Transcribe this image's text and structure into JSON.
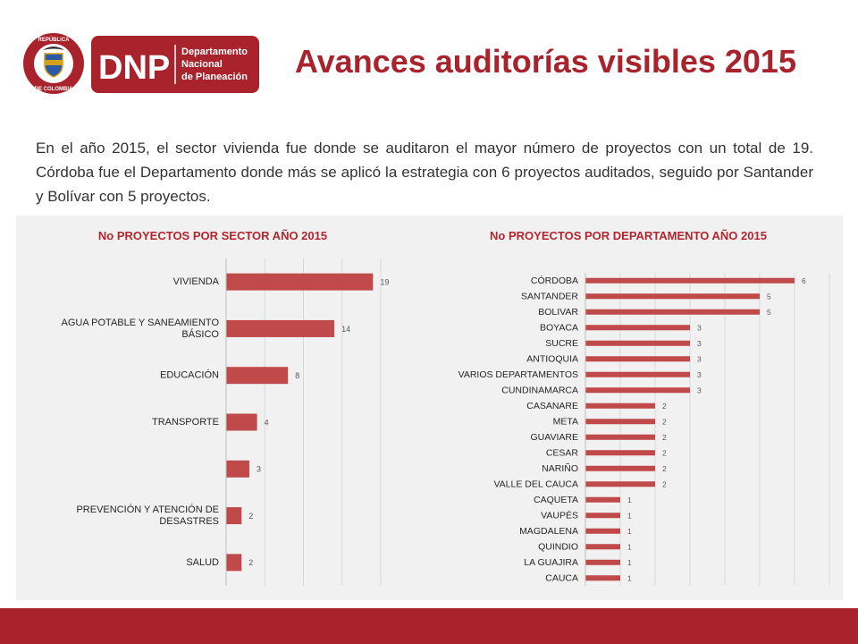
{
  "header": {
    "logo": {
      "seal_top_text": "REPÚBLICA",
      "seal_bottom_text": "DE COLOMBIA",
      "acronym": "DNP",
      "name_lines": [
        "Departamento",
        "Nacional",
        "de Planeación"
      ]
    },
    "title": "Avances auditorías visibles 2015"
  },
  "intro": "En el año 2015, el sector vivienda fue donde se auditaron el mayor número de proyectos con un total de 19. Córdoba fue el Departamento donde más se aplicó la estrategia con 6 proyectos auditados, seguido por Santander y Bolívar con 5 proyectos.",
  "colors": {
    "brand": "#a8232b",
    "bar": "#c0494a",
    "panel": "#f1f1f1",
    "gridline": "#d9d9d9"
  },
  "chart_data": [
    {
      "type": "bar",
      "orientation": "horizontal",
      "title": "No PROYECTOS POR SECTOR AÑO 2015",
      "categories": [
        "VIVIENDA",
        "AGUA POTABLE Y SANEAMIENTO BÁSICO",
        "EDUCACIÓN",
        "TRANSPORTE",
        "",
        "PREVENCIÓN Y ATENCIÓN DE DESASTRES",
        "SALUD"
      ],
      "values": [
        19,
        14,
        8,
        4,
        3,
        2,
        2
      ],
      "xlim": [
        0,
        20
      ],
      "grid": true,
      "data_labels": true
    },
    {
      "type": "bar",
      "orientation": "horizontal",
      "title": "No PROYECTOS POR DEPARTAMENTO AÑO 2015",
      "categories": [
        "CÓRDOBA",
        "SANTANDER",
        "BOLIVAR",
        "BOYACA",
        "SUCRE",
        "ANTIOQUIA",
        "VARIOS DEPARTAMENTOS",
        "CUNDINAMARCA",
        "CASANARE",
        "META",
        "GUAVIARE",
        "CESAR",
        "NARIÑO",
        "VALLE DEL CAUCA",
        "CAQUETA",
        "VAUPÉS",
        "MAGDALENA",
        "QUINDIO",
        "LA GUAJIRA",
        "CAUCA"
      ],
      "values": [
        6,
        5,
        5,
        3,
        3,
        3,
        3,
        3,
        2,
        2,
        2,
        2,
        2,
        2,
        1,
        1,
        1,
        1,
        1,
        1
      ],
      "xlim": [
        0,
        7
      ],
      "grid": true,
      "data_labels": true
    }
  ]
}
